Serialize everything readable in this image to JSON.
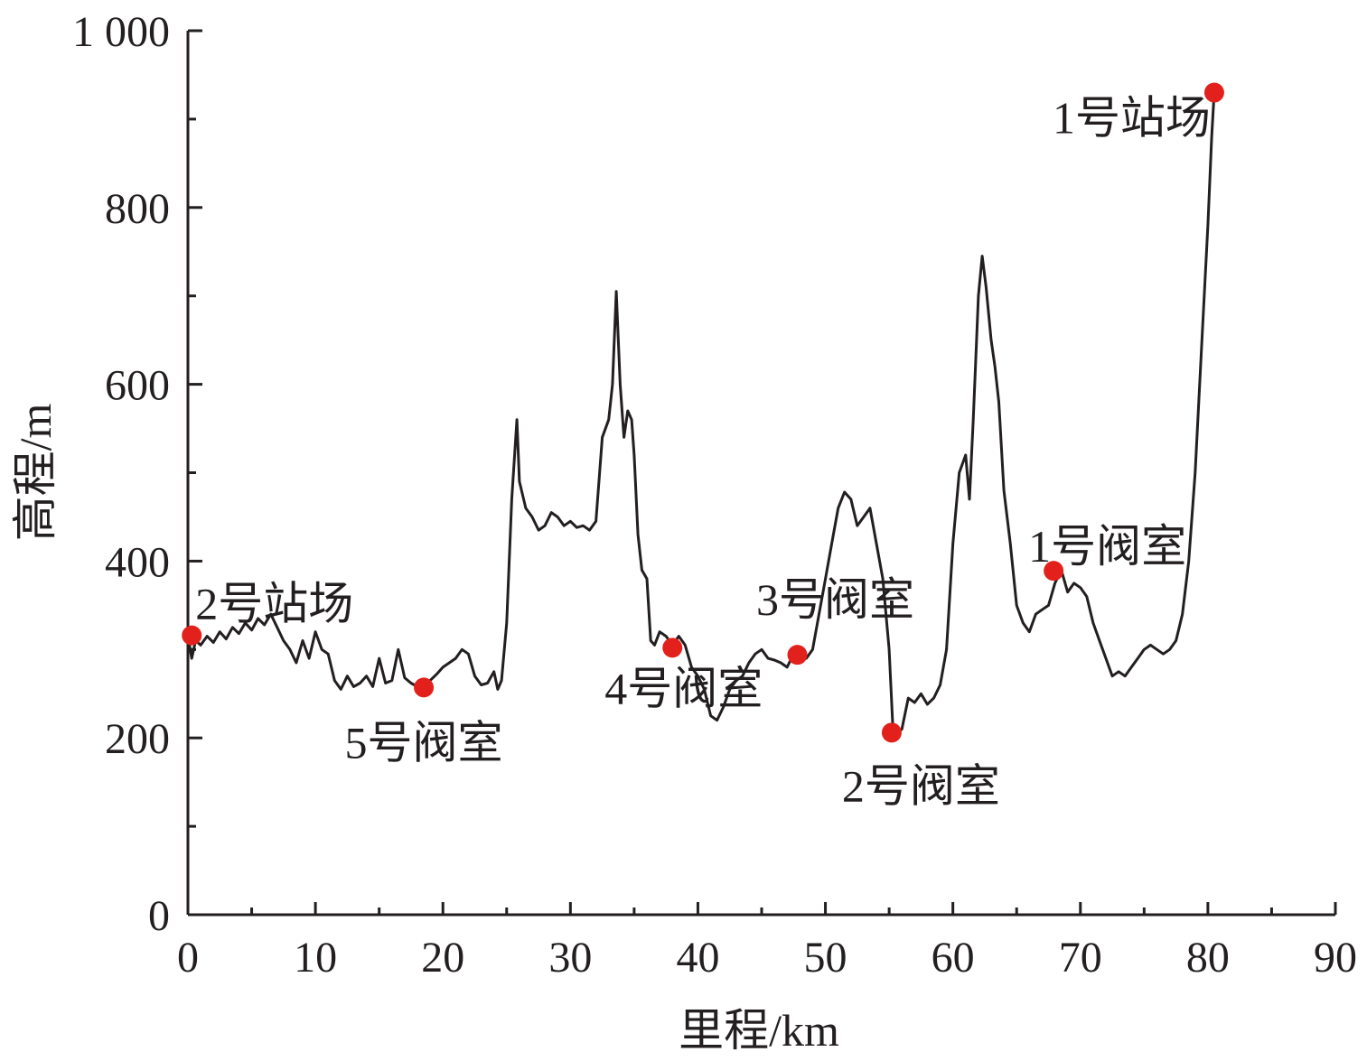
{
  "chart_data": {
    "type": "line",
    "xlabel": "里程/km",
    "ylabel": "高程/m",
    "xlim": [
      0,
      90
    ],
    "ylim": [
      0,
      1000
    ],
    "x_ticks": [
      0,
      10,
      20,
      30,
      40,
      50,
      60,
      70,
      80,
      90
    ],
    "x_tick_labels": [
      "0",
      "10",
      "20",
      "30",
      "40",
      "50",
      "60",
      "70",
      "80",
      "90"
    ],
    "y_ticks": [
      0,
      200,
      400,
      600,
      800,
      1000
    ],
    "y_tick_labels": [
      "0",
      "200",
      "400",
      "600",
      "800",
      "1 000"
    ],
    "line_color": "#231f20",
    "marker_color": "#e3211c",
    "series": [
      {
        "x": [
          0,
          0.3,
          0.6,
          1.0,
          1.5,
          2.0,
          2.5,
          3.0,
          3.5,
          4.0,
          4.5,
          5.0,
          5.5,
          6.0,
          6.5,
          7.0,
          7.5,
          8.0,
          8.5,
          9.0,
          9.5,
          10.0,
          10.5,
          11.0,
          11.5,
          12.0,
          12.5,
          13.0,
          13.5,
          14.0,
          14.5,
          15.0,
          15.5,
          16.0,
          16.5,
          17.0,
          17.5,
          18.0,
          18.5,
          19.0,
          19.5,
          20.0,
          20.5,
          21.0,
          21.5,
          22.0,
          22.5,
          23.0,
          23.5,
          24.0,
          24.3,
          24.6,
          25.0,
          25.4,
          25.8,
          26.0,
          26.5,
          27.0,
          27.5,
          28.0,
          28.5,
          29.0,
          29.5,
          30.0,
          30.5,
          31.0,
          31.5,
          32.0,
          32.5,
          33.0,
          33.3,
          33.6,
          33.9,
          34.2,
          34.5,
          34.8,
          35.0,
          35.3,
          35.6,
          36.0,
          36.3,
          36.6,
          37.0,
          37.5,
          38.0,
          38.5,
          39.0,
          39.5,
          40.0,
          40.5,
          41.0,
          41.5,
          42.0,
          42.5,
          43.0,
          43.5,
          44.0,
          44.5,
          45.0,
          45.5,
          46.0,
          46.5,
          47.0,
          47.5,
          48.0,
          48.5,
          49.0,
          49.5,
          50.0,
          50.5,
          51.0,
          51.5,
          52.0,
          52.5,
          53.0,
          53.5,
          54.0,
          54.5,
          55.0,
          55.3,
          55.6,
          56.0,
          56.5,
          57.0,
          57.5,
          58.0,
          58.5,
          59.0,
          59.5,
          60.0,
          60.5,
          61.0,
          61.3,
          61.6,
          62.0,
          62.3,
          62.6,
          63.0,
          63.3,
          63.6,
          64.0,
          64.5,
          65.0,
          65.5,
          66.0,
          66.5,
          67.0,
          67.5,
          68.0,
          68.5,
          69.0,
          69.5,
          70.0,
          70.5,
          71.0,
          71.5,
          72.0,
          72.5,
          73.0,
          73.5,
          74.0,
          74.5,
          75.0,
          75.5,
          76.0,
          76.5,
          77.0,
          77.5,
          78.0,
          78.5,
          79.0,
          79.5,
          80.0,
          80.3,
          80.5
        ],
        "y": [
          316,
          290,
          310,
          305,
          315,
          308,
          320,
          312,
          325,
          318,
          330,
          322,
          335,
          328,
          340,
          325,
          310,
          300,
          285,
          310,
          290,
          320,
          300,
          295,
          265,
          255,
          270,
          258,
          262,
          270,
          258,
          290,
          262,
          265,
          300,
          268,
          262,
          258,
          262,
          265,
          272,
          280,
          285,
          290,
          300,
          295,
          270,
          260,
          262,
          275,
          255,
          265,
          330,
          470,
          560,
          490,
          460,
          450,
          435,
          440,
          455,
          450,
          440,
          445,
          438,
          440,
          435,
          445,
          540,
          560,
          600,
          705,
          600,
          540,
          570,
          560,
          520,
          430,
          390,
          380,
          310,
          305,
          320,
          315,
          305,
          315,
          305,
          280,
          270,
          255,
          225,
          220,
          235,
          255,
          265,
          270,
          285,
          295,
          300,
          290,
          288,
          285,
          280,
          295,
          295,
          290,
          300,
          340,
          380,
          420,
          460,
          478,
          470,
          440,
          450,
          460,
          420,
          380,
          300,
          210,
          205,
          210,
          245,
          240,
          250,
          238,
          245,
          260,
          300,
          420,
          500,
          520,
          470,
          560,
          700,
          745,
          710,
          650,
          620,
          580,
          480,
          420,
          350,
          330,
          320,
          340,
          345,
          350,
          375,
          390,
          365,
          375,
          370,
          360,
          330,
          310,
          290,
          270,
          275,
          270,
          280,
          290,
          300,
          305,
          300,
          295,
          300,
          310,
          340,
          400,
          500,
          640,
          780,
          880,
          930
        ],
        "stroke_width": 3
      }
    ],
    "annotations": [
      {
        "x": 0.3,
        "y": 316,
        "label": "2号站场",
        "anchor": "start",
        "dx": 4,
        "dy": -18
      },
      {
        "x": 18.5,
        "y": 257,
        "label": "5号阀室",
        "anchor": "middle",
        "dx": 0,
        "dy": 78
      },
      {
        "x": 38.0,
        "y": 302,
        "label": "4号阀室",
        "anchor": "end",
        "dx": 100,
        "dy": 62
      },
      {
        "x": 47.8,
        "y": 294,
        "label": "3号阀室",
        "anchor": "middle",
        "dx": 42,
        "dy": -44
      },
      {
        "x": 55.2,
        "y": 206,
        "label": "2号阀室",
        "anchor": "start",
        "dx": -55,
        "dy": 76
      },
      {
        "x": 67.9,
        "y": 389,
        "label": "1号阀室",
        "anchor": "start",
        "dx": -28,
        "dy": -10
      },
      {
        "x": 80.5,
        "y": 930,
        "label": "1号站场",
        "anchor": "end",
        "dx": -4,
        "dy": 45
      }
    ]
  }
}
